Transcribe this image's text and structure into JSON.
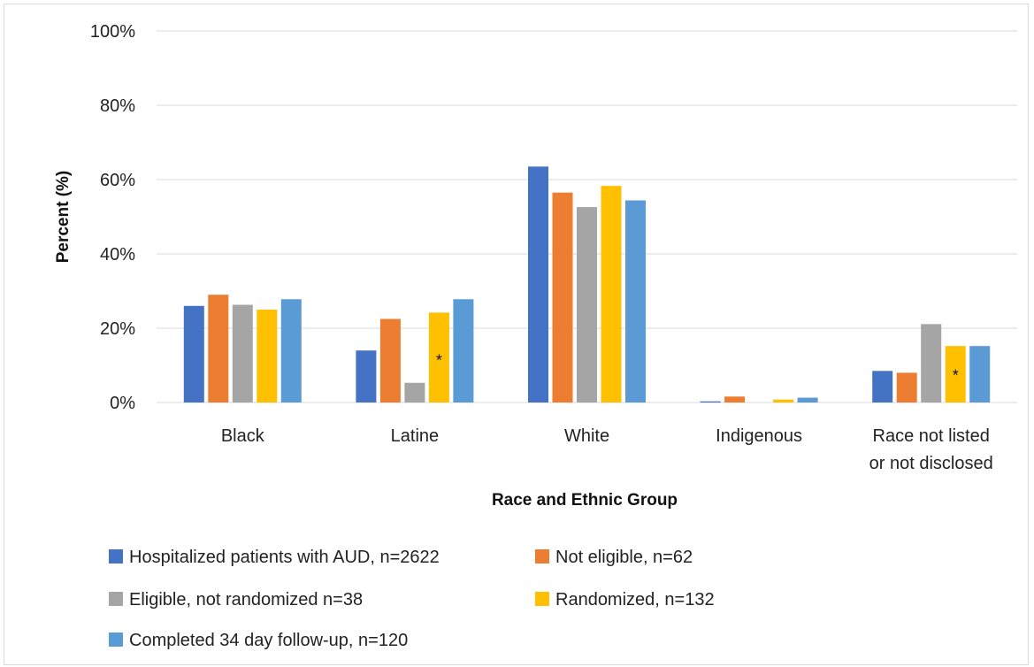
{
  "chart_data": {
    "type": "bar",
    "title": "",
    "xlabel": "Race and Ethnic Group",
    "ylabel": "Percent (%)",
    "ylim": [
      0,
      100
    ],
    "yticks": [
      "0%",
      "20%",
      "40%",
      "60%",
      "80%",
      "100%"
    ],
    "ytick_values": [
      0,
      20,
      40,
      60,
      80,
      100
    ],
    "grid": true,
    "legend_position": "bottom",
    "categories": [
      [
        "Black"
      ],
      [
        "Latine"
      ],
      [
        "White"
      ],
      [
        "Indigenous"
      ],
      [
        "Race not listed",
        "or not disclosed"
      ]
    ],
    "series": [
      {
        "name": "Hospitalized patients with AUD, n=2622",
        "color": "#4472C4",
        "values": [
          26,
          14,
          63.5,
          0.3,
          8.5
        ]
      },
      {
        "name": "Not eligible, n=62",
        "color": "#ED7D31",
        "values": [
          29,
          22.5,
          56.5,
          1.6,
          8
        ]
      },
      {
        "name": "Eligible, not randomized n=38",
        "color": "#A5A5A5",
        "values": [
          26.3,
          5.3,
          52.6,
          0,
          21.1
        ]
      },
      {
        "name": "Randomized, n=132",
        "color": "#FFC000",
        "values": [
          25,
          24.2,
          58.3,
          0.8,
          15.2
        ]
      },
      {
        "name": "Completed 34 day follow-up, n=120",
        "color": "#5B9BD5",
        "values": [
          27.8,
          27.8,
          54.4,
          1.3,
          15.2
        ]
      }
    ],
    "annotations": [
      {
        "text": "*",
        "category_index": 1,
        "series_index": 3
      },
      {
        "text": "*",
        "category_index": 4,
        "series_index": 3
      }
    ]
  }
}
